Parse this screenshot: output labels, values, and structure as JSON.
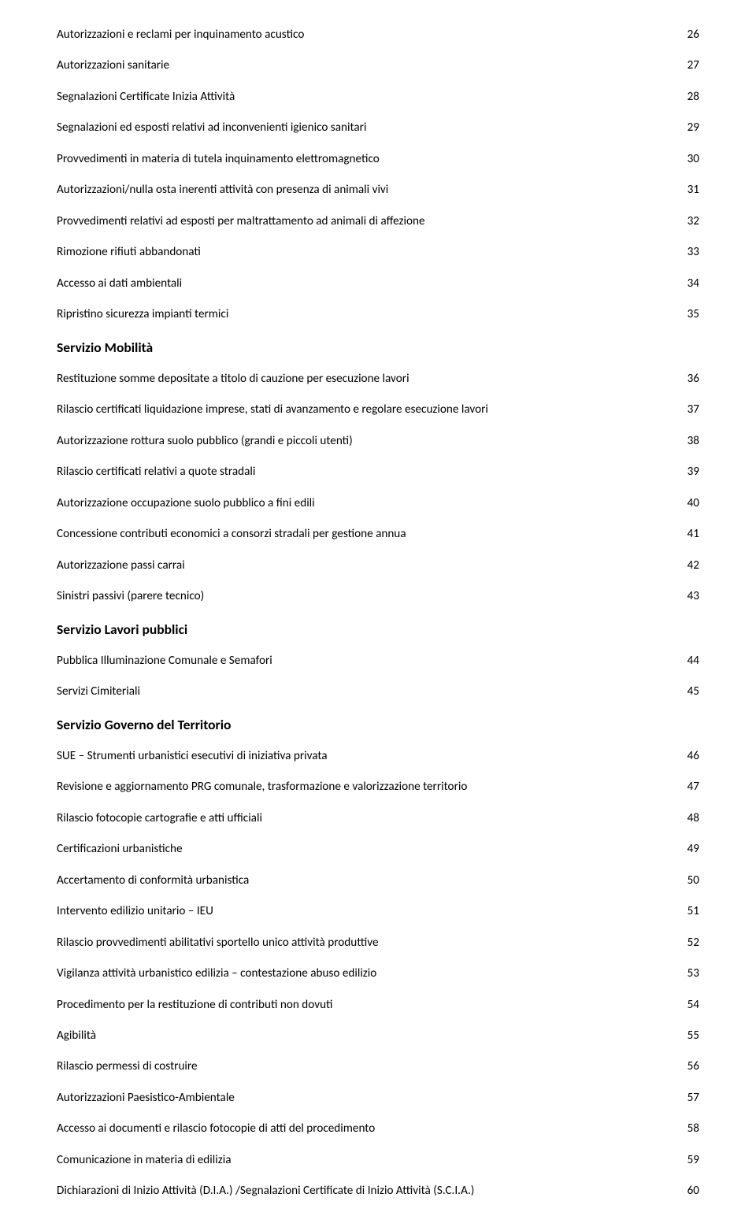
{
  "rows": [
    {
      "kind": "item",
      "first": true,
      "label": "Autorizzazioni e reclami per inquinamento acustico",
      "num": "26"
    },
    {
      "kind": "item",
      "label": "Autorizzazioni sanitarie",
      "num": "27"
    },
    {
      "kind": "item",
      "label": "Segnalazioni Certificate Inizia Attività",
      "num": "28"
    },
    {
      "kind": "item",
      "label": "Segnalazioni ed esposti relativi ad inconvenienti igienico sanitari",
      "num": "29"
    },
    {
      "kind": "item",
      "label": "Provvedimenti in materia di tutela inquinamento elettromagnetico",
      "num": "30"
    },
    {
      "kind": "item",
      "label": "Autorizzazioni/nulla osta inerenti attività con presenza di animali vivi",
      "num": "31"
    },
    {
      "kind": "item",
      "label": "Provvedimenti relativi ad esposti per maltrattamento ad animali di affezione",
      "num": "32"
    },
    {
      "kind": "item",
      "label": "Rimozione rifiuti abbandonati",
      "num": "33"
    },
    {
      "kind": "item",
      "label": "Accesso ai dati ambientali",
      "num": "34"
    },
    {
      "kind": "item",
      "label": "Ripristino sicurezza impianti termici",
      "num": "35"
    },
    {
      "kind": "section",
      "label": "Servizio Mobilità",
      "num": ""
    },
    {
      "kind": "item",
      "label": "Restituzione somme depositate a titolo di cauzione per esecuzione lavori",
      "num": "36"
    },
    {
      "kind": "item",
      "label": "Rilascio certificati liquidazione imprese, stati di avanzamento e regolare esecuzione lavori",
      "num": "37"
    },
    {
      "kind": "item",
      "label": "Autorizzazione rottura suolo pubblico (grandi e piccoli utenti)",
      "num": "38"
    },
    {
      "kind": "item",
      "label": "Rilascio certificati relativi a quote stradali",
      "num": "39"
    },
    {
      "kind": "item",
      "label": "Autorizzazione occupazione suolo pubblico a fini edili",
      "num": "40"
    },
    {
      "kind": "item",
      "label": "Concessione contributi economici a consorzi stradali per gestione annua",
      "num": "41"
    },
    {
      "kind": "item",
      "label": "Autorizzazione passi carrai",
      "num": "42"
    },
    {
      "kind": "item",
      "label": "Sinistri passivi (parere tecnico)",
      "num": "43"
    },
    {
      "kind": "section",
      "label": "Servizio Lavori pubblici",
      "num": ""
    },
    {
      "kind": "item",
      "label": "Pubblica Illuminazione Comunale e Semafori",
      "num": "44"
    },
    {
      "kind": "item",
      "label": "Servizi Cimiteriali",
      "num": "45"
    },
    {
      "kind": "section",
      "label": "Servizio Governo del Territorio",
      "num": ""
    },
    {
      "kind": "item",
      "label": "SUE – Strumenti urbanistici esecutivi di iniziativa privata",
      "num": "46"
    },
    {
      "kind": "item",
      "label": "Revisione e aggiornamento PRG comunale, trasformazione e valorizzazione territorio",
      "num": "47"
    },
    {
      "kind": "item",
      "label": "Rilascio fotocopie cartografie e atti ufficiali",
      "num": "48"
    },
    {
      "kind": "item",
      "label": "Certificazioni urbanistiche",
      "num": "49"
    },
    {
      "kind": "item",
      "label": "Accertamento di conformità urbanistica",
      "num": "50"
    },
    {
      "kind": "item",
      "label": "Intervento edilizio unitario – IEU",
      "num": "51"
    },
    {
      "kind": "item",
      "label": "Rilascio provvedimenti abilitativi sportello unico attività produttive",
      "num": "52"
    },
    {
      "kind": "item",
      "label": "Vigilanza attività urbanistico edilizia – contestazione abuso edilizio",
      "num": "53"
    },
    {
      "kind": "item",
      "label": "Procedimento per la restituzione di contributi non dovuti",
      "num": "54"
    },
    {
      "kind": "item",
      "label": "Agibilità",
      "num": "55"
    },
    {
      "kind": "item",
      "label": "Rilascio permessi di costruire",
      "num": "56"
    },
    {
      "kind": "item",
      "label": "Autorizzazioni Paesistico-Ambientale",
      "num": "57"
    },
    {
      "kind": "item",
      "label": "Accesso ai documenti e rilascio fotocopie di atti del procedimento",
      "num": "58"
    },
    {
      "kind": "item",
      "label": "Comunicazione in materia di edilizia",
      "num": "59"
    },
    {
      "kind": "item",
      "label": "Dichiarazioni di Inizio Attività (D.I.A.) /Segnalazioni Certificate di Inizio Attività (S.C.I.A.)",
      "num": "60"
    }
  ]
}
